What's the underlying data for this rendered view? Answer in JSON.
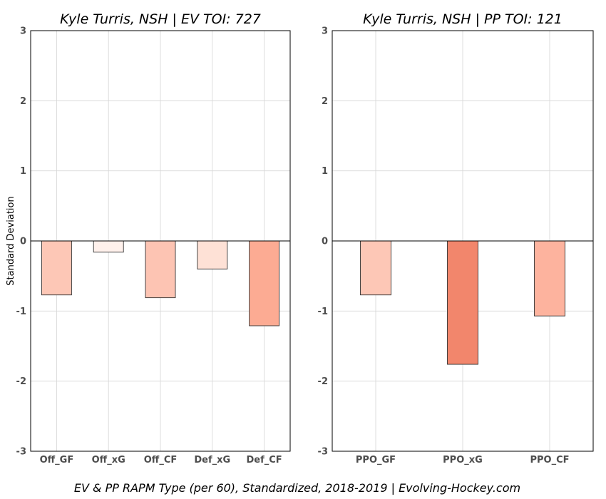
{
  "chart_data": [
    {
      "type": "bar",
      "title": "Kyle Turris, NSH  |  EV TOI: 727",
      "ylabel": "Standard Deviation",
      "xlabel": "",
      "ylim": [
        -3,
        3
      ],
      "yticks": [
        -3,
        -2,
        -1,
        0,
        1,
        2,
        3
      ],
      "grid": true,
      "categories": [
        "Off_GF",
        "Off_xG",
        "Off_CF",
        "Def_xG",
        "Def_CF"
      ],
      "values": [
        -0.77,
        -0.16,
        -0.81,
        -0.4,
        -1.21
      ],
      "colors": [
        "#fdc7b6",
        "#fff1ec",
        "#fdc4b3",
        "#fee1d6",
        "#fcab93"
      ]
    },
    {
      "type": "bar",
      "title": "Kyle Turris, NSH  |  PP TOI: 121",
      "ylabel": "",
      "xlabel": "",
      "ylim": [
        -3,
        3
      ],
      "yticks": [
        -3,
        -2,
        -1,
        0,
        1,
        2,
        3
      ],
      "grid": true,
      "categories": [
        "PPO_GF",
        "PPO_xG",
        "PPO_CF"
      ],
      "values": [
        -0.77,
        -1.76,
        -1.07
      ],
      "colors": [
        "#fdc7b6",
        "#f2866c",
        "#fdb39e"
      ]
    }
  ],
  "caption": "EV & PP RAPM Type (per 60), Standardized, 2018-2019    |    Evolving-Hockey.com"
}
